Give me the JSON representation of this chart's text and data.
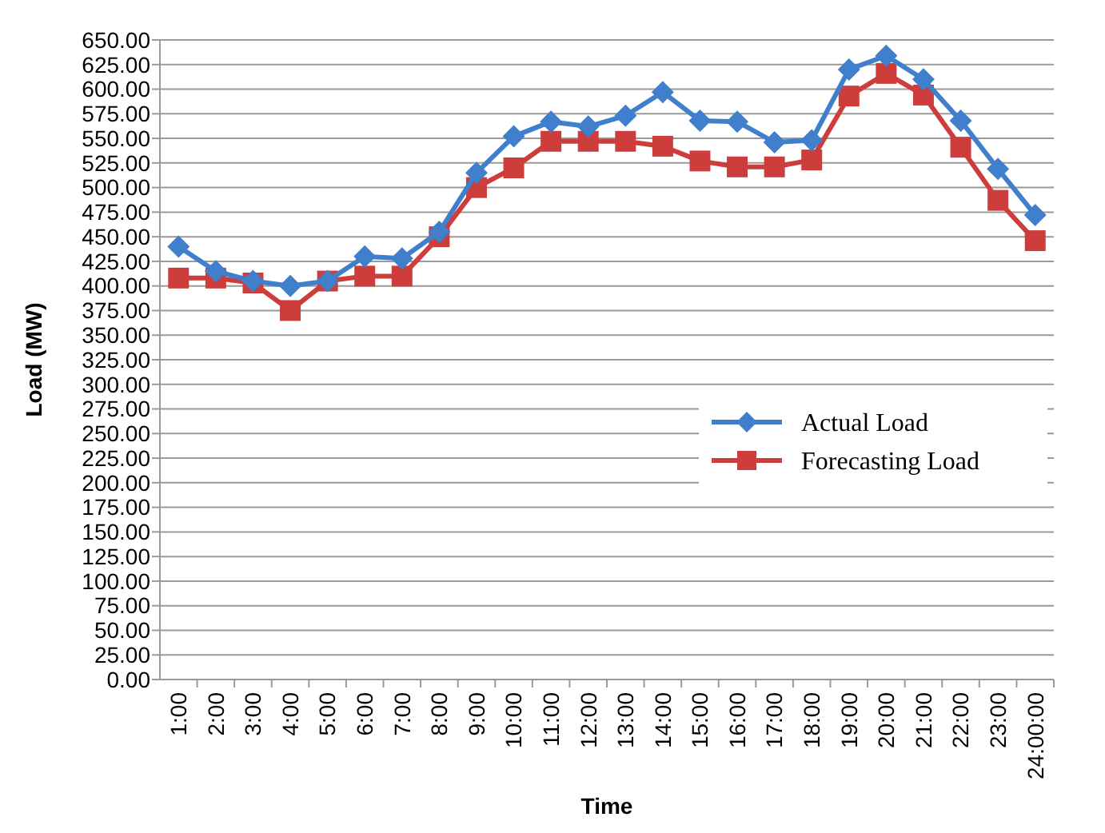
{
  "chart_data": {
    "type": "line",
    "xlabel": "Time",
    "ylabel": "Load (MW)",
    "categories": [
      "1:00",
      "2:00",
      "3:00",
      "4:00",
      "5:00",
      "6:00",
      "7:00",
      "8:00",
      "9:00",
      "10:00",
      "11:00",
      "12:00",
      "13:00",
      "14:00",
      "15:00",
      "16:00",
      "17:00",
      "18:00",
      "19:00",
      "20:00",
      "21:00",
      "22:00",
      "23:00",
      "24:00:00"
    ],
    "series": [
      {
        "name": "Actual Load",
        "color": "#3f7fcb",
        "marker": "diamond",
        "values": [
          440,
          415,
          405,
          400,
          405,
          430,
          428,
          455,
          515,
          552,
          567,
          562,
          573,
          597,
          568,
          567,
          546,
          548,
          620,
          634,
          610,
          568,
          519,
          472
        ]
      },
      {
        "name": "Forecasting Load",
        "color": "#cc3d3b",
        "marker": "square",
        "values": [
          408,
          408,
          403,
          375,
          405,
          410,
          410,
          450,
          500,
          520,
          547,
          547,
          547,
          542,
          527,
          521,
          521,
          528,
          593,
          616,
          594,
          541,
          487,
          446
        ]
      }
    ],
    "ylim": [
      0,
      650
    ],
    "yticks": [
      {
        "value": 0,
        "label": "0.00"
      },
      {
        "value": 25,
        "label": "25.00"
      },
      {
        "value": 50,
        "label": "50.00"
      },
      {
        "value": 75,
        "label": "75.00"
      },
      {
        "value": 100,
        "label": "100.00"
      },
      {
        "value": 125,
        "label": "125.00"
      },
      {
        "value": 150,
        "label": "150.00"
      },
      {
        "value": 175,
        "label": "175.00"
      },
      {
        "value": 200,
        "label": "200.00"
      },
      {
        "value": 225,
        "label": "225.00"
      },
      {
        "value": 250,
        "label": "250.00"
      },
      {
        "value": 275,
        "label": "275.00"
      },
      {
        "value": 300,
        "label": "300.00"
      },
      {
        "value": 325,
        "label": "325.00"
      },
      {
        "value": 350,
        "label": "350.00"
      },
      {
        "value": 375,
        "label": "375.00"
      },
      {
        "value": 400,
        "label": "400.00"
      },
      {
        "value": 425,
        "label": "425.00"
      },
      {
        "value": 450,
        "label": "450.00"
      },
      {
        "value": 475,
        "label": "475.00"
      },
      {
        "value": 500,
        "label": "500.00"
      },
      {
        "value": 525,
        "label": "525.00"
      },
      {
        "value": 550,
        "label": "550.00"
      },
      {
        "value": 575,
        "label": "575.00"
      },
      {
        "value": 600,
        "label": "600.00"
      },
      {
        "value": 625,
        "label": "625.00"
      },
      {
        "value": 650,
        "label": "650.00"
      }
    ],
    "grid": "y",
    "legend": "right",
    "line_style": "solid"
  }
}
